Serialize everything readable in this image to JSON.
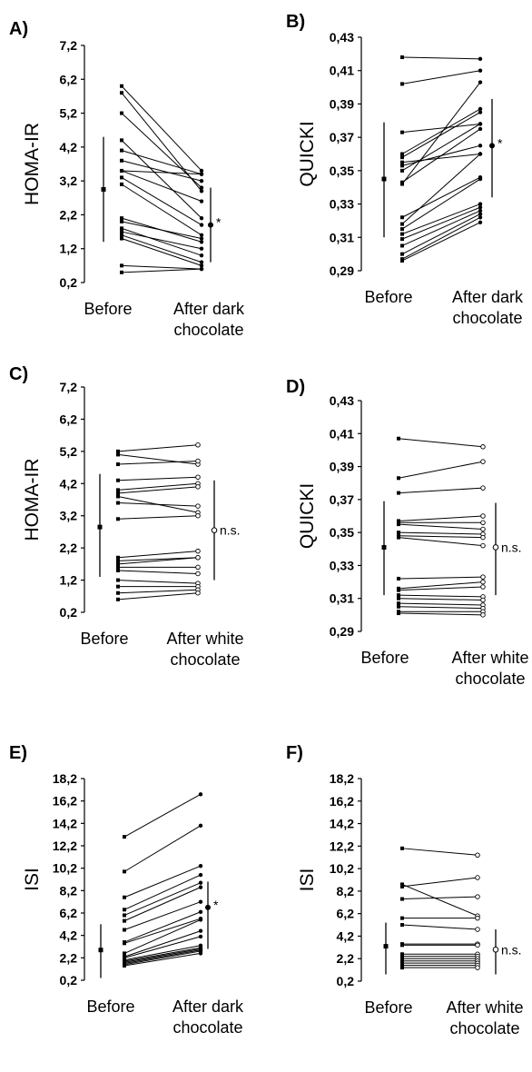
{
  "chart_data": [
    {
      "panel": "A)",
      "type": "line",
      "ylabel": "HOMA-IR",
      "ylim": [
        0.2,
        7.2
      ],
      "yticks": [
        "0,2",
        "1,2",
        "2,2",
        "3,2",
        "4,2",
        "5,2",
        "6,2",
        "7,2"
      ],
      "categories": [
        "Before",
        "After dark chocolate"
      ],
      "pairs": [
        [
          6.0,
          3.5
        ],
        [
          5.8,
          2.9
        ],
        [
          5.2,
          3.0
        ],
        [
          4.4,
          2.1
        ],
        [
          4.1,
          3.4
        ],
        [
          3.8,
          3.2
        ],
        [
          3.5,
          3.4
        ],
        [
          3.5,
          2.6
        ],
        [
          3.3,
          1.9
        ],
        [
          3.1,
          1.6
        ],
        [
          2.1,
          1.4
        ],
        [
          2.0,
          1.5
        ],
        [
          1.8,
          1.0
        ],
        [
          1.7,
          1.2
        ],
        [
          1.6,
          0.8
        ],
        [
          1.5,
          0.7
        ],
        [
          0.7,
          0.6
        ],
        [
          0.5,
          0.6
        ]
      ],
      "before_mean": 2.95,
      "before_range": [
        1.4,
        4.5
      ],
      "after_mean": 1.9,
      "after_range": [
        0.8,
        3.0
      ],
      "after_open": false,
      "significance": "*"
    },
    {
      "panel": "B)",
      "type": "line",
      "ylabel": "QUICKI",
      "ylim": [
        0.29,
        0.43
      ],
      "yticks": [
        "0,29",
        "0,31",
        "0,33",
        "0,35",
        "0,37",
        "0,39",
        "0,41",
        "0,43"
      ],
      "categories": [
        "Before",
        "After dark chocolate"
      ],
      "pairs": [
        [
          0.418,
          0.417
        ],
        [
          0.402,
          0.41
        ],
        [
          0.373,
          0.378
        ],
        [
          0.36,
          0.387
        ],
        [
          0.358,
          0.385
        ],
        [
          0.355,
          0.36
        ],
        [
          0.353,
          0.365
        ],
        [
          0.35,
          0.378
        ],
        [
          0.343,
          0.375
        ],
        [
          0.342,
          0.403
        ],
        [
          0.322,
          0.346
        ],
        [
          0.318,
          0.36
        ],
        [
          0.315,
          0.345
        ],
        [
          0.312,
          0.33
        ],
        [
          0.309,
          0.328
        ],
        [
          0.305,
          0.326
        ],
        [
          0.3,
          0.324
        ],
        [
          0.297,
          0.322
        ],
        [
          0.296,
          0.319
        ]
      ],
      "before_mean": 0.345,
      "before_range": [
        0.31,
        0.379
      ],
      "after_mean": 0.365,
      "after_range": [
        0.334,
        0.393
      ],
      "after_open": false,
      "significance": "*"
    },
    {
      "panel": "C)",
      "type": "line",
      "ylabel": "HOMA-IR",
      "ylim": [
        0.2,
        7.2
      ],
      "yticks": [
        "0,2",
        "1,2",
        "2,2",
        "3,2",
        "4,2",
        "5,2",
        "6,2",
        "7,2"
      ],
      "categories": [
        "Before",
        "After white chocolate"
      ],
      "pairs": [
        [
          5.2,
          5.4
        ],
        [
          5.1,
          4.8
        ],
        [
          4.8,
          4.9
        ],
        [
          4.3,
          4.4
        ],
        [
          4.0,
          4.2
        ],
        [
          3.9,
          4.1
        ],
        [
          3.8,
          3.3
        ],
        [
          3.6,
          3.5
        ],
        [
          3.1,
          3.2
        ],
        [
          1.9,
          2.1
        ],
        [
          1.8,
          1.9
        ],
        [
          1.7,
          1.9
        ],
        [
          1.6,
          1.6
        ],
        [
          1.5,
          1.4
        ],
        [
          1.2,
          1.1
        ],
        [
          1.0,
          1.0
        ],
        [
          0.8,
          0.9
        ],
        [
          0.6,
          0.8
        ]
      ],
      "before_mean": 2.85,
      "before_range": [
        1.3,
        4.5
      ],
      "after_mean": 2.75,
      "after_range": [
        1.2,
        4.3
      ],
      "after_open": true,
      "significance": "n.s."
    },
    {
      "panel": "D)",
      "type": "line",
      "ylabel": "QUICKI",
      "ylim": [
        0.29,
        0.43
      ],
      "yticks": [
        "0,29",
        "0,31",
        "0,33",
        "0,35",
        "0,37",
        "0,39",
        "0,41",
        "0,43"
      ],
      "categories": [
        "Before",
        "After white chocolate"
      ],
      "pairs": [
        [
          0.407,
          0.402
        ],
        [
          0.383,
          0.393
        ],
        [
          0.374,
          0.377
        ],
        [
          0.357,
          0.36
        ],
        [
          0.356,
          0.356
        ],
        [
          0.355,
          0.352
        ],
        [
          0.35,
          0.349
        ],
        [
          0.348,
          0.347
        ],
        [
          0.347,
          0.342
        ],
        [
          0.322,
          0.323
        ],
        [
          0.316,
          0.32
        ],
        [
          0.315,
          0.317
        ],
        [
          0.312,
          0.311
        ],
        [
          0.31,
          0.309
        ],
        [
          0.307,
          0.306
        ],
        [
          0.305,
          0.304
        ],
        [
          0.302,
          0.302
        ],
        [
          0.301,
          0.3
        ]
      ],
      "before_mean": 0.341,
      "before_range": [
        0.312,
        0.369
      ],
      "after_mean": 0.341,
      "after_range": [
        0.312,
        0.368
      ],
      "after_open": true,
      "significance": "n.s."
    },
    {
      "panel": "E)",
      "type": "line",
      "ylabel": "ISI",
      "ylim": [
        0.2,
        18.2
      ],
      "yticks": [
        "0,2",
        "2,2",
        "4,2",
        "6,2",
        "8,2",
        "10,2",
        "12,2",
        "14,2",
        "16,2",
        "18,2"
      ],
      "categories": [
        "Before",
        "After dark chocolate"
      ],
      "pairs": [
        [
          13.0,
          16.8
        ],
        [
          9.9,
          14.0
        ],
        [
          7.6,
          10.4
        ],
        [
          6.5,
          9.6
        ],
        [
          6.0,
          8.9
        ],
        [
          5.5,
          8.5
        ],
        [
          4.7,
          7.2
        ],
        [
          3.6,
          6.3
        ],
        [
          3.5,
          5.7
        ],
        [
          2.6,
          5.6
        ],
        [
          2.3,
          4.6
        ],
        [
          2.2,
          4.1
        ],
        [
          2.0,
          3.3
        ],
        [
          1.9,
          3.1
        ],
        [
          1.8,
          3.0
        ],
        [
          1.7,
          2.9
        ],
        [
          1.6,
          2.8
        ],
        [
          1.5,
          2.6
        ]
      ],
      "before_mean": 2.9,
      "before_range": [
        0.4,
        5.2
      ],
      "after_mean": 6.7,
      "after_range": [
        3.0,
        9.0
      ],
      "after_open": false,
      "significance": "*"
    },
    {
      "panel": "F)",
      "type": "line",
      "ylabel": "ISI",
      "ylim": [
        0.2,
        18.2
      ],
      "yticks": [
        "0,2",
        "2,2",
        "4,2",
        "6,2",
        "8,2",
        "10,2",
        "12,2",
        "14,2",
        "16,2",
        "18,2"
      ],
      "categories": [
        "Before",
        "After white chocolate"
      ],
      "pairs": [
        [
          12.0,
          11.4
        ],
        [
          8.8,
          6.0
        ],
        [
          8.6,
          9.4
        ],
        [
          7.5,
          7.7
        ],
        [
          5.8,
          5.8
        ],
        [
          5.2,
          4.8
        ],
        [
          3.5,
          3.5
        ],
        [
          3.4,
          3.4
        ],
        [
          2.6,
          2.6
        ],
        [
          2.4,
          2.4
        ],
        [
          2.2,
          2.2
        ],
        [
          2.0,
          2.0
        ],
        [
          1.8,
          1.8
        ],
        [
          1.6,
          1.6
        ],
        [
          1.4,
          1.4
        ]
      ],
      "before_mean": 3.3,
      "before_range": [
        0.8,
        5.4
      ],
      "after_mean": 3.0,
      "after_range": [
        0.8,
        4.8
      ],
      "after_open": true,
      "significance": "n.s."
    }
  ]
}
